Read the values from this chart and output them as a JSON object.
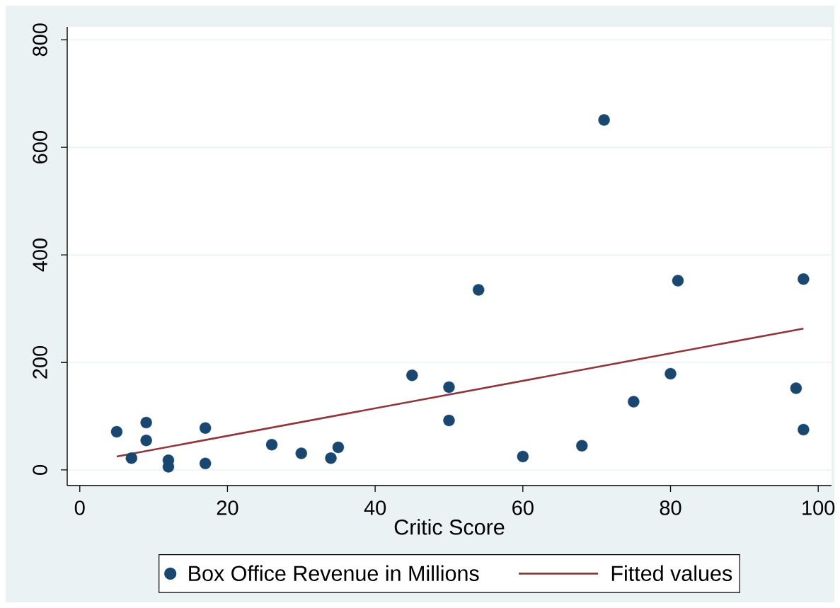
{
  "chart_data": {
    "type": "scatter",
    "xlabel": "Critic Score",
    "x": [
      5,
      7,
      9,
      9,
      12,
      12,
      17,
      17,
      26,
      30,
      34,
      35,
      45,
      50,
      50,
      54,
      60,
      68,
      71,
      75,
      80,
      81,
      97,
      98,
      98
    ],
    "xlim": [
      -1.7,
      101.8
    ],
    "ylim": [
      -29,
      824
    ],
    "xticks": [
      0,
      20,
      40,
      60,
      80,
      100
    ],
    "yticks": [
      0,
      200,
      400,
      600,
      800
    ],
    "grid": "y",
    "legend": "bottom",
    "marker": "circle",
    "series": [
      {
        "name": "Box Office Revenue in Millions",
        "color": "#1a476f",
        "values": [
          71,
          22,
          88,
          55,
          18,
          6,
          78,
          12,
          47,
          31,
          22,
          42,
          176,
          154,
          92,
          335,
          25,
          45,
          651,
          127,
          179,
          352,
          152,
          355,
          75
        ]
      },
      {
        "name": "Fitted values",
        "type": "line",
        "color": "#90353b",
        "x": [
          5,
          98
        ],
        "values": [
          25,
          263
        ],
        "marker": "none",
        "line_style": "solid"
      }
    ]
  }
}
